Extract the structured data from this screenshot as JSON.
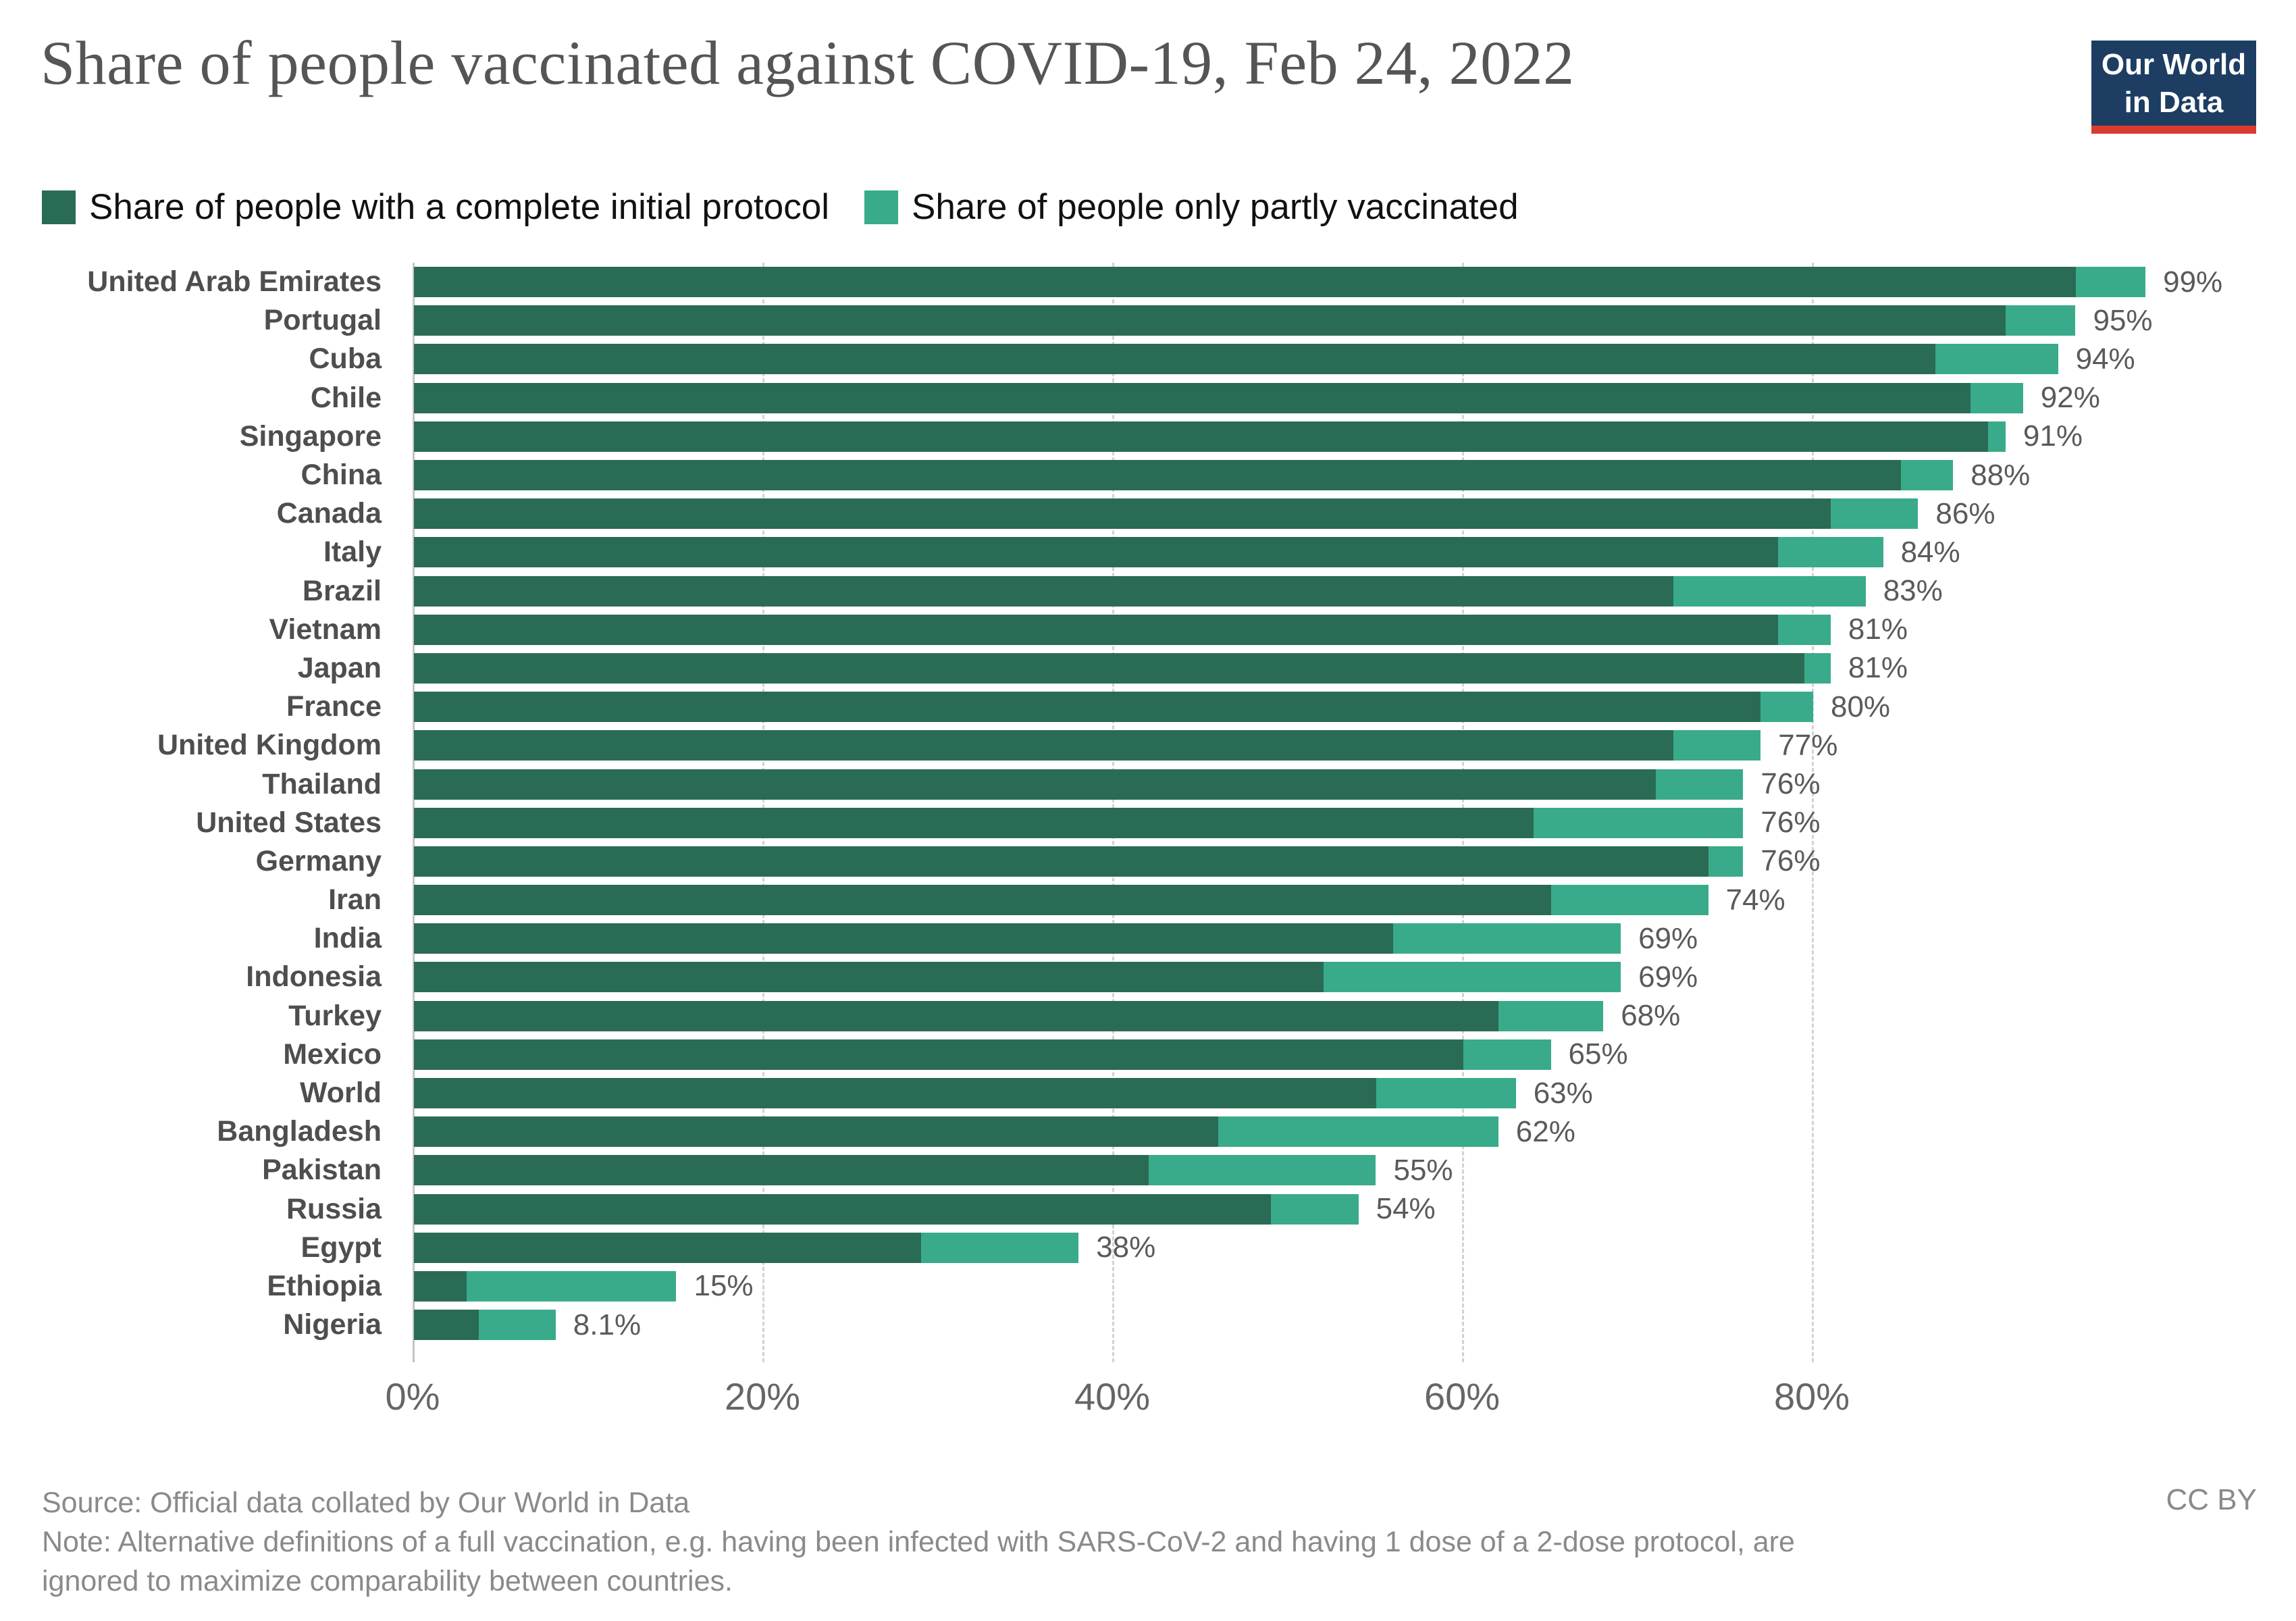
{
  "header": {
    "title": "Share of people vaccinated against COVID-19, Feb 24, 2022",
    "logo": {
      "line1": "Our World",
      "line2": "in Data",
      "bg_color": "#1d3d63",
      "stripe_color": "#dc3a30"
    }
  },
  "footer": {
    "source": "Source: Official data collated by Our World in Data",
    "note": "Note: Alternative definitions of a full vaccination, e.g. having been infected with SARS-CoV-2 and having 1 dose of a 2-dose protocol, are ignored to maximize comparability between countries.",
    "license": "CC BY"
  },
  "chart_data": {
    "type": "bar",
    "orientation": "horizontal",
    "stacked": true,
    "title": "Share of people vaccinated against COVID-19, Feb 24, 2022",
    "unit": "%",
    "xlim": [
      0,
      100
    ],
    "x_tick_values": [
      0,
      20,
      40,
      60,
      80
    ],
    "x_ticks": [
      "0%",
      "20%",
      "40%",
      "60%",
      "80%"
    ],
    "grid": "dashed-vertical",
    "legend_position": "top",
    "series": [
      {
        "name": "Share of people with a complete initial protocol",
        "color": "#2a6b55"
      },
      {
        "name": "Share of people only partly vaccinated",
        "color": "#39ab8a"
      }
    ],
    "categories": [
      "United Arab Emirates",
      "Portugal",
      "Cuba",
      "Chile",
      "Singapore",
      "China",
      "Canada",
      "Italy",
      "Brazil",
      "Vietnam",
      "Japan",
      "France",
      "United Kingdom",
      "Thailand",
      "United States",
      "Germany",
      "Iran",
      "India",
      "Indonesia",
      "Turkey",
      "Mexico",
      "World",
      "Bangladesh",
      "Pakistan",
      "Russia",
      "Egypt",
      "Ethiopia",
      "Nigeria"
    ],
    "rows": [
      {
        "name": "United Arab Emirates",
        "complete": 95,
        "partly": 4,
        "total_label": "99%"
      },
      {
        "name": "Portugal",
        "complete": 91,
        "partly": 4,
        "total_label": "95%"
      },
      {
        "name": "Cuba",
        "complete": 87,
        "partly": 7,
        "total_label": "94%"
      },
      {
        "name": "Chile",
        "complete": 89,
        "partly": 3,
        "total_label": "92%"
      },
      {
        "name": "Singapore",
        "complete": 90,
        "partly": 1,
        "total_label": "91%"
      },
      {
        "name": "China",
        "complete": 85,
        "partly": 3,
        "total_label": "88%"
      },
      {
        "name": "Canada",
        "complete": 81,
        "partly": 5,
        "total_label": "86%"
      },
      {
        "name": "Italy",
        "complete": 78,
        "partly": 6,
        "total_label": "84%"
      },
      {
        "name": "Brazil",
        "complete": 72,
        "partly": 11,
        "total_label": "83%"
      },
      {
        "name": "Vietnam",
        "complete": 78,
        "partly": 3,
        "total_label": "81%"
      },
      {
        "name": "Japan",
        "complete": 79.5,
        "partly": 1.5,
        "total_label": "81%"
      },
      {
        "name": "France",
        "complete": 77,
        "partly": 3,
        "total_label": "80%"
      },
      {
        "name": "United Kingdom",
        "complete": 72,
        "partly": 5,
        "total_label": "77%"
      },
      {
        "name": "Thailand",
        "complete": 71,
        "partly": 5,
        "total_label": "76%"
      },
      {
        "name": "United States",
        "complete": 64,
        "partly": 12,
        "total_label": "76%"
      },
      {
        "name": "Germany",
        "complete": 74,
        "partly": 2,
        "total_label": "76%"
      },
      {
        "name": "Iran",
        "complete": 65,
        "partly": 9,
        "total_label": "74%"
      },
      {
        "name": "India",
        "complete": 56,
        "partly": 13,
        "total_label": "69%"
      },
      {
        "name": "Indonesia",
        "complete": 52,
        "partly": 17,
        "total_label": "69%"
      },
      {
        "name": "Turkey",
        "complete": 62,
        "partly": 6,
        "total_label": "68%"
      },
      {
        "name": "Mexico",
        "complete": 60,
        "partly": 5,
        "total_label": "65%"
      },
      {
        "name": "World",
        "complete": 55,
        "partly": 8,
        "total_label": "63%"
      },
      {
        "name": "Bangladesh",
        "complete": 46,
        "partly": 16,
        "total_label": "62%"
      },
      {
        "name": "Pakistan",
        "complete": 42,
        "partly": 13,
        "total_label": "55%"
      },
      {
        "name": "Russia",
        "complete": 49,
        "partly": 5,
        "total_label": "54%"
      },
      {
        "name": "Egypt",
        "complete": 29,
        "partly": 9,
        "total_label": "38%"
      },
      {
        "name": "Ethiopia",
        "complete": 3,
        "partly": 12,
        "total_label": "15%"
      },
      {
        "name": "Nigeria",
        "complete": 3.7,
        "partly": 4.4,
        "total_label": "8.1%"
      }
    ]
  }
}
